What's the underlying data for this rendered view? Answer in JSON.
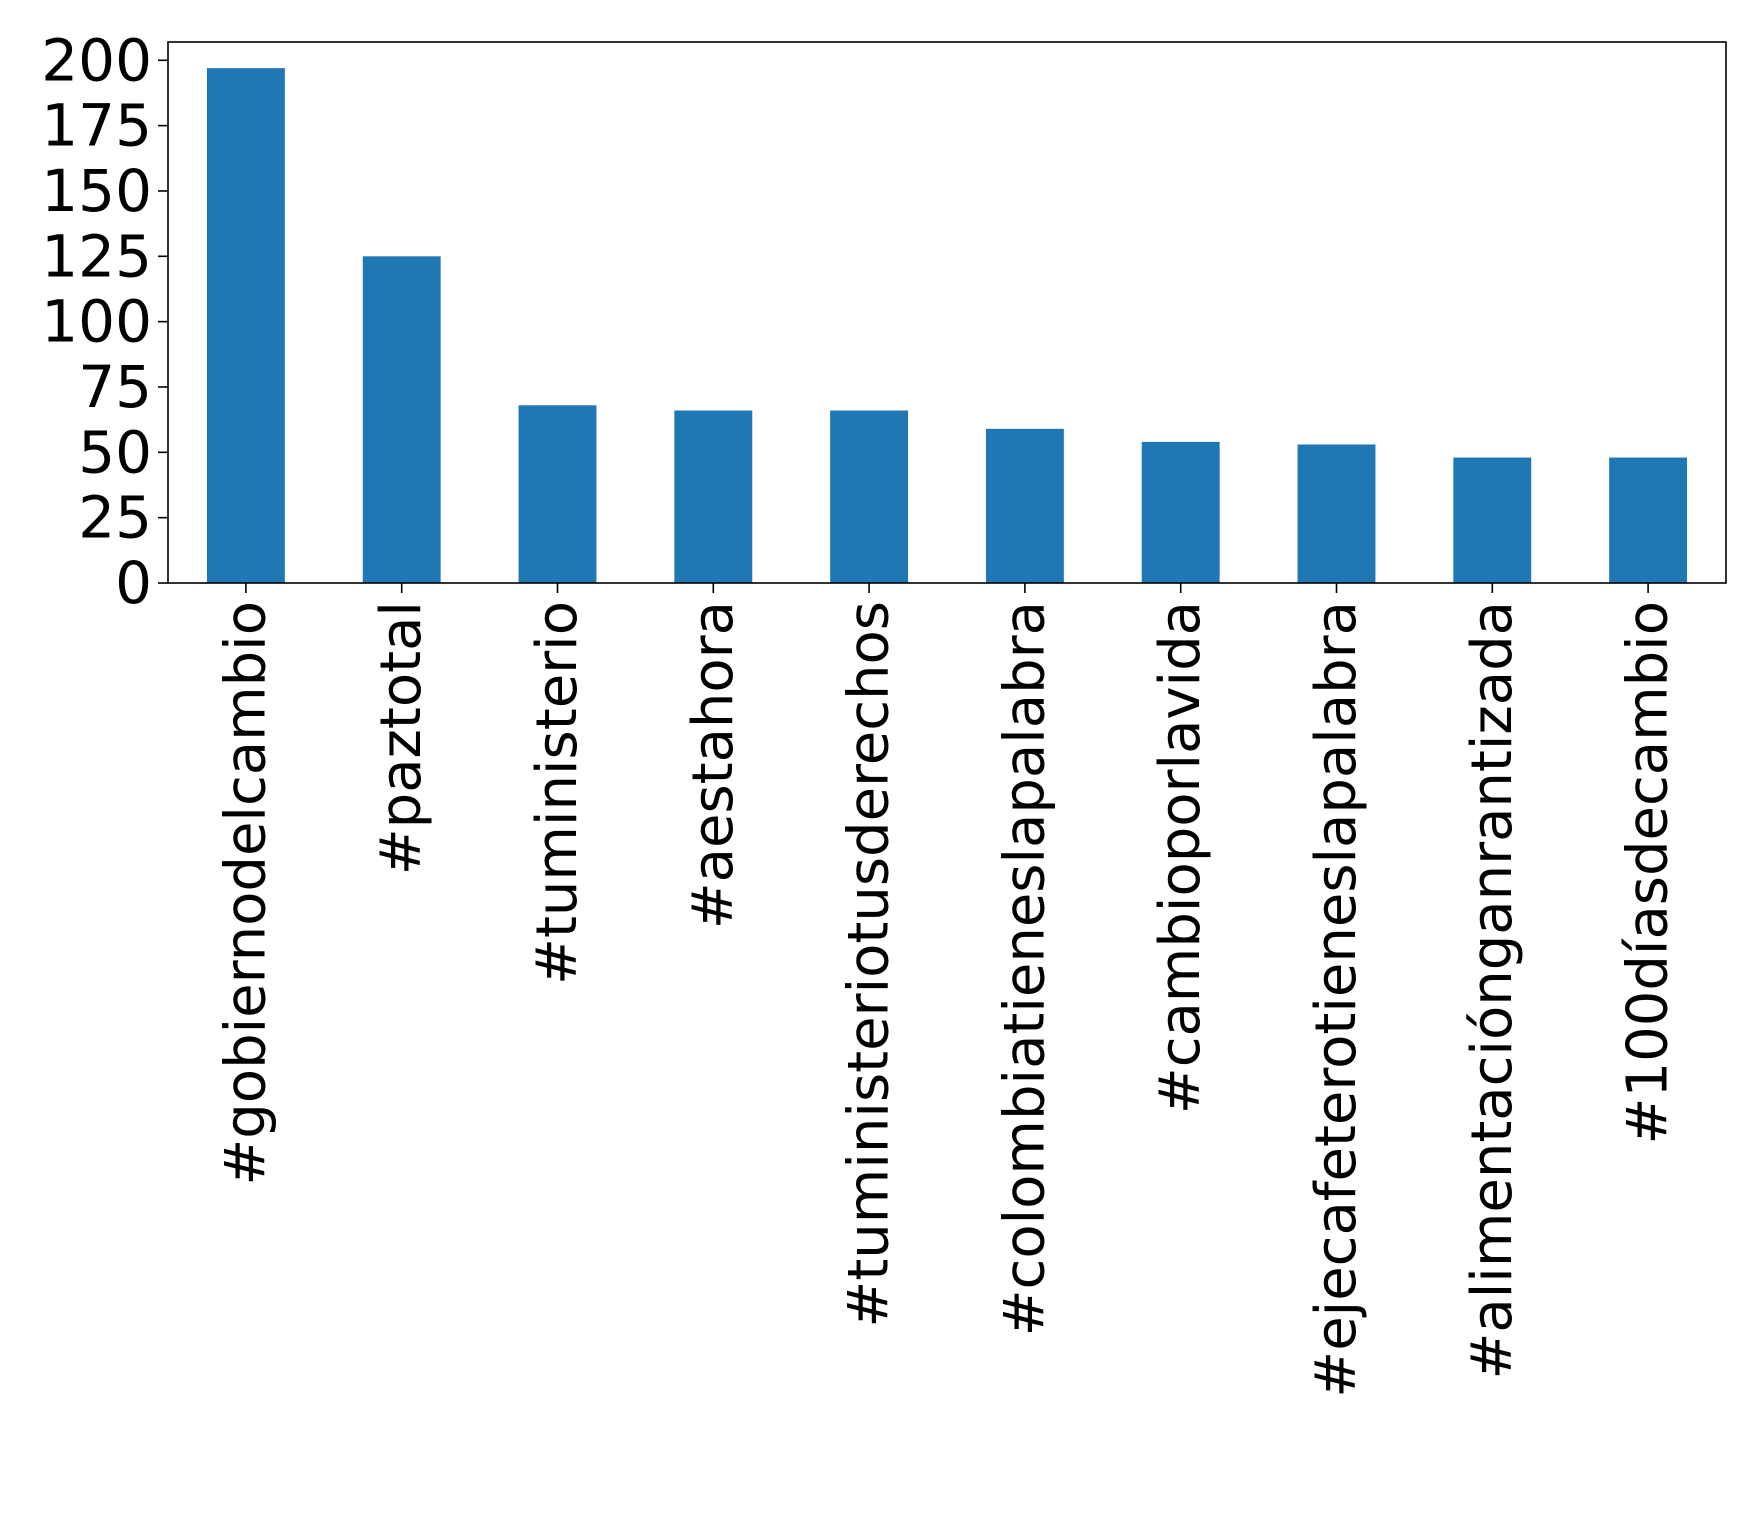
{
  "chart_data": {
    "type": "bar",
    "title": "",
    "xlabel": "",
    "ylabel": "",
    "categories": [
      "#gobiernodelcambio",
      "#paztotal",
      "#tuministerio",
      "#aestahora",
      "#tuministeriotusderechos",
      "#colombiatieneslapalabra",
      "#cambioporlavida",
      "#ejecafeterotieneslapalabra",
      "#alimentaciónganrantizada",
      "#100díasdecambio"
    ],
    "values": [
      197,
      125,
      68,
      66,
      66,
      59,
      54,
      53,
      48,
      48
    ],
    "ylim": [
      0,
      207
    ],
    "yticks": [
      0,
      25,
      50,
      75,
      100,
      125,
      150,
      175,
      200
    ],
    "grid": false,
    "bar_color": "#1f77b4",
    "axis_color": "#000000"
  }
}
